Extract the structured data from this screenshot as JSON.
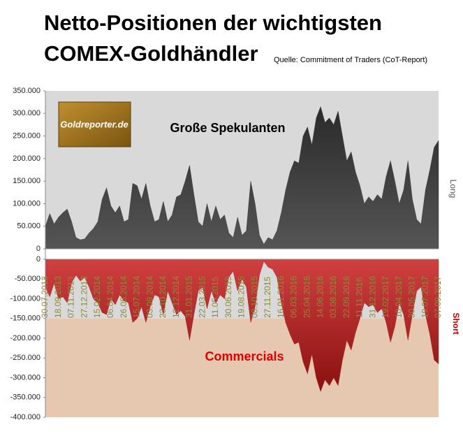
{
  "title": [
    "Netto-Positionen der wichtigsten",
    "COMEX-Goldhändler"
  ],
  "source": "Quelle: Commitment of Traders (CoT-Report)",
  "logo": "Goldreporter.de",
  "chart_data": {
    "type": "area",
    "categories": [
      "30.07.2013",
      null,
      null,
      "18.09.2013",
      null,
      null,
      "07.11.2013",
      null,
      null,
      "27.12.2013",
      null,
      null,
      "15.02.2014",
      null,
      null,
      "06.04.2014",
      null,
      null,
      "26.05.2014",
      null,
      null,
      "15.07.2014",
      null,
      null,
      "03.09.2014",
      null,
      null,
      "23.10.2014",
      null,
      null,
      "12.12.2014",
      null,
      null,
      "31.01.2015",
      null,
      null,
      "22.03.2015",
      null,
      null,
      "11.05.2015",
      null,
      null,
      "30.06.2015",
      null,
      null,
      "19.08.2015",
      null,
      null,
      "08.10.2015",
      null,
      null,
      "27.11.2015",
      null,
      null,
      "16.01.2016",
      null,
      null,
      "06.03.2016",
      null,
      null,
      "25.04.2016",
      null,
      null,
      "14.06.2016",
      null,
      null,
      "03.08.2016",
      null,
      null,
      "22.09.2016",
      null,
      null,
      "11.11.2016",
      null,
      null,
      "31.12.2016",
      null,
      null,
      "19.02.2017",
      null,
      null,
      "10.04.2017",
      null,
      null,
      "30.05.2017",
      null,
      null,
      "19.07.2017",
      null,
      null,
      "07.09.2017"
    ],
    "series": [
      {
        "name": "Große Spekulanten",
        "color": "#404040",
        "axis": "y",
        "axis_label": "Long",
        "values": [
          50000,
          78000,
          55000,
          70000,
          80000,
          88000,
          60000,
          25000,
          20000,
          22000,
          35000,
          45000,
          60000,
          110000,
          135000,
          95000,
          80000,
          95000,
          60000,
          65000,
          145000,
          140000,
          110000,
          145000,
          95000,
          60000,
          65000,
          105000,
          60000,
          75000,
          115000,
          120000,
          150000,
          185000,
          120000,
          60000,
          50000,
          100000,
          60000,
          95000,
          65000,
          75000,
          35000,
          25000,
          70000,
          30000,
          40000,
          150000,
          100000,
          30000,
          10000,
          25000,
          20000,
          40000,
          80000,
          130000,
          170000,
          195000,
          190000,
          250000,
          270000,
          230000,
          290000,
          315000,
          280000,
          290000,
          275000,
          305000,
          250000,
          195000,
          215000,
          170000,
          140000,
          100000,
          115000,
          105000,
          120000,
          110000,
          160000,
          195000,
          150000,
          100000,
          130000,
          195000,
          110000,
          65000,
          55000,
          130000,
          175000,
          225000,
          240000
        ]
      },
      {
        "name": "Commercials",
        "color": "#b52020",
        "axis": "y2",
        "axis_label": "Short",
        "values": [
          -70000,
          -95000,
          -60000,
          -100000,
          -95000,
          -110000,
          -60000,
          -40000,
          -55000,
          -45000,
          -70000,
          -100000,
          -110000,
          -135000,
          -140000,
          -100000,
          -115000,
          -90000,
          -105000,
          -110000,
          -160000,
          -150000,
          -120000,
          -160000,
          -120000,
          -90000,
          -95000,
          -140000,
          -80000,
          -110000,
          -140000,
          -130000,
          -145000,
          -205000,
          -140000,
          -80000,
          -70000,
          -125000,
          -80000,
          -110000,
          -90000,
          -100000,
          -45000,
          -30000,
          -80000,
          -50000,
          -70000,
          -160000,
          -120000,
          -40000,
          -5000,
          -20000,
          -25000,
          -45000,
          -110000,
          -160000,
          -190000,
          -215000,
          -210000,
          -260000,
          -290000,
          -240000,
          -300000,
          -335000,
          -305000,
          -320000,
          -300000,
          -320000,
          -255000,
          -205000,
          -230000,
          -185000,
          -150000,
          -110000,
          -120000,
          -115000,
          -135000,
          -125000,
          -160000,
          -210000,
          -170000,
          -110000,
          -140000,
          -205000,
          -140000,
          -80000,
          -70000,
          -140000,
          -190000,
          -255000,
          -265000
        ]
      }
    ],
    "ylim": [
      0,
      350000
    ],
    "yticks": [
      0,
      {
        "value": 50000,
        "label": "50.000"
      },
      {
        "value": 100000,
        "label": "100.000"
      },
      {
        "value": 150000,
        "label": "150.000"
      },
      {
        "value": 200000,
        "label": "200.000"
      },
      {
        "value": 250000,
        "label": "250.000"
      },
      {
        "value": 300000,
        "label": "300.000"
      },
      {
        "value": 350000,
        "label": "350.000"
      }
    ],
    "y2lim": [
      -400000,
      0
    ],
    "y2ticks": [
      {
        "value": -400000,
        "label": "-400.000"
      },
      {
        "value": -350000,
        "label": "-350.000"
      },
      {
        "value": -300000,
        "label": "-300.000"
      },
      {
        "value": -250000,
        "label": "-250.000"
      },
      {
        "value": -200000,
        "label": "-200.000"
      },
      {
        "value": -150000,
        "label": "-150.000"
      },
      {
        "value": -100000,
        "label": "-100.000"
      },
      {
        "value": -50000,
        "label": "-50.000"
      },
      0
    ]
  }
}
